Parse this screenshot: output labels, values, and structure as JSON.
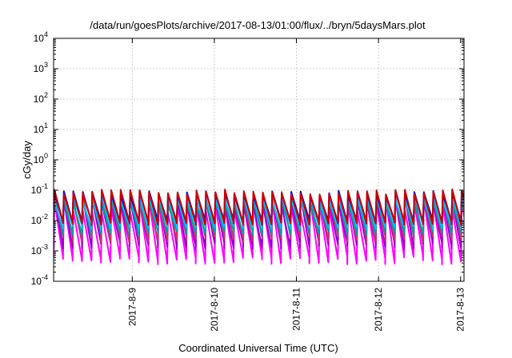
{
  "chart_data": {
    "type": "line",
    "title": "/data/run/goesPlots/archive/2017-08-13/01:00/flux/../bryn/5daysMars.plot",
    "xlabel": "Coordinated Universal Time (UTC)",
    "ylabel": "cGy/day",
    "yscale": "log",
    "ylim": [
      0.0001,
      10000
    ],
    "xlim": [
      "2017-08-08T01:00",
      "2017-08-13T01:00"
    ],
    "x_ticks": [
      "2017-8-9",
      "2017-8-10",
      "2017-8-11",
      "2017-8-12",
      "2017-8-13"
    ],
    "y_ticks": [
      {
        "base": "10",
        "exp": "-4"
      },
      {
        "base": "10",
        "exp": "-3"
      },
      {
        "base": "10",
        "exp": "-2"
      },
      {
        "base": "10",
        "exp": "-1"
      },
      {
        "base": "10",
        "exp": "0"
      },
      {
        "base": "10",
        "exp": "1"
      },
      {
        "base": "10",
        "exp": "2"
      },
      {
        "base": "10",
        "exp": "3"
      },
      {
        "base": "10",
        "exp": "4"
      }
    ],
    "grid": true,
    "legend": "none",
    "sawtooth_period_hours": 2.77,
    "series": [
      {
        "color": "#ff00ff",
        "peak": 0.035,
        "trough": 0.0005,
        "peak_jitter": 0.5
      },
      {
        "color": "#9400d3",
        "peak": 0.05,
        "trough": 0.0015,
        "peak_jitter": 0.4
      },
      {
        "color": "#cc3366",
        "peak": 0.065,
        "trough": 0.0025,
        "peak_jitter": 0.4
      },
      {
        "color": "#00a0a0",
        "peak": 0.045,
        "trough": 0.004,
        "peak_jitter": 0.3
      },
      {
        "color": "#00bfff",
        "peak": 0.055,
        "trough": 0.006,
        "peak_jitter": 0.25
      },
      {
        "color": "#0000ee",
        "peak": 0.08,
        "trough": 0.009,
        "peak_jitter": 0.2
      },
      {
        "color": "#cc0000",
        "peak": 0.09,
        "trough": 0.008,
        "peak_jitter": 0.2
      }
    ]
  }
}
